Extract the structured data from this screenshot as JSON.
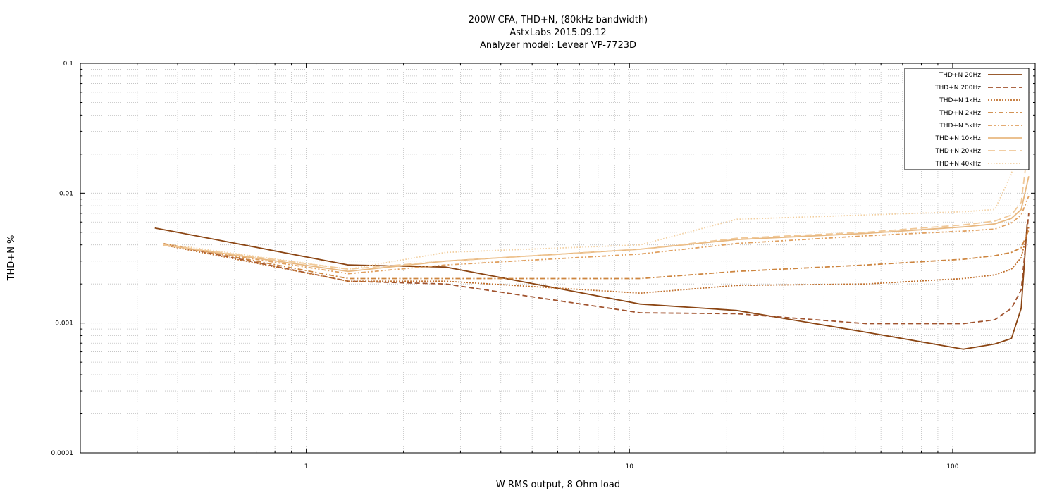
{
  "chart_data": {
    "type": "line",
    "title_lines": [
      "200W CFA, THD+N, (80kHz bandwidth)",
      "AstxLabs 2015.09.12",
      "Analyzer model: Levear VP-7723D"
    ],
    "xlabel": "W RMS output, 8 Ohm load",
    "ylabel": "THD+N %",
    "x_scale": "log",
    "y_scale": "log",
    "xlim": [
      0.2,
      180
    ],
    "ylim": [
      0.0001,
      0.1
    ],
    "x_ticks": [
      1,
      10,
      100
    ],
    "x_tick_labels": [
      "1",
      "10",
      "100"
    ],
    "y_ticks": [
      0.0001,
      0.001,
      0.01,
      0.1
    ],
    "y_tick_labels": [
      "0.0001",
      "0.001",
      "0.01",
      "0.1"
    ],
    "grid": true,
    "legend_position": "top-right",
    "series": [
      {
        "name": "THD+N 20Hz",
        "color": "#8b4513",
        "dash": "solid",
        "x": [
          0.34,
          1.35,
          2.7,
          10.8,
          21.5,
          54,
          108,
          135,
          152,
          163,
          170
        ],
        "y": [
          0.0054,
          0.0028,
          0.0027,
          0.0014,
          0.00125,
          0.00085,
          0.00063,
          0.00069,
          0.00076,
          0.0013,
          0.0058
        ]
      },
      {
        "name": "THD+N 200Hz",
        "color": "#a0522d",
        "dash": "dashed",
        "x": [
          0.36,
          1.35,
          2.7,
          10.8,
          21.5,
          54,
          108,
          135,
          152,
          163,
          172
        ],
        "y": [
          0.0041,
          0.0021,
          0.002,
          0.0012,
          0.00118,
          0.00099,
          0.00099,
          0.00106,
          0.0013,
          0.0018,
          0.007
        ]
      },
      {
        "name": "THD+N 1kHz",
        "color": "#c0702e",
        "dash": "dotted",
        "x": [
          0.36,
          1.35,
          2.7,
          10.8,
          21.5,
          54,
          108,
          135,
          152,
          163,
          172
        ],
        "y": [
          0.004,
          0.0021,
          0.0021,
          0.0017,
          0.00195,
          0.002,
          0.0022,
          0.00235,
          0.0026,
          0.0032,
          0.0055
        ]
      },
      {
        "name": "THD+N 2kHz",
        "color": "#cd853f",
        "dash": "dashdot",
        "x": [
          0.36,
          1.35,
          2.7,
          10.8,
          21.5,
          54,
          108,
          135,
          152,
          163,
          172
        ],
        "y": [
          0.0041,
          0.0022,
          0.0022,
          0.0022,
          0.0025,
          0.0028,
          0.0031,
          0.0033,
          0.0035,
          0.0038,
          0.0052
        ]
      },
      {
        "name": "THD+N 5kHz",
        "color": "#e0a060",
        "dash": "dashdotdot",
        "x": [
          0.36,
          1.35,
          2.7,
          10.8,
          21.5,
          54,
          108,
          135,
          152,
          163,
          172
        ],
        "y": [
          0.004,
          0.0024,
          0.0028,
          0.0034,
          0.0041,
          0.0047,
          0.0051,
          0.0053,
          0.0059,
          0.0068,
          0.0095
        ]
      },
      {
        "name": "THD+N 10kHz",
        "color": "#e8b880",
        "dash": "solid",
        "x": [
          0.36,
          1.35,
          2.7,
          10.8,
          21.5,
          54,
          108,
          135,
          152,
          163,
          172
        ],
        "y": [
          0.004,
          0.0025,
          0.003,
          0.0037,
          0.0044,
          0.0049,
          0.0055,
          0.0058,
          0.0064,
          0.0075,
          0.0135
        ]
      },
      {
        "name": "THD+N 20kHz",
        "color": "#f0c898",
        "dash": "longdash",
        "x": [
          0.36,
          1.35,
          2.7,
          10.8,
          21.5,
          54,
          108,
          135,
          152,
          163,
          172
        ],
        "y": [
          0.004,
          0.0026,
          0.003,
          0.0037,
          0.0045,
          0.005,
          0.0057,
          0.0061,
          0.0068,
          0.0085,
          0.025
        ]
      },
      {
        "name": "THD+N 40kHz",
        "color": "#f2cfa0",
        "dash": "finedot",
        "x": [
          0.36,
          1.35,
          2.7,
          10.8,
          21.5,
          54,
          108,
          135,
          152,
          163,
          172
        ],
        "y": [
          0.0041,
          0.0026,
          0.0035,
          0.004,
          0.0063,
          0.0068,
          0.0072,
          0.0075,
          0.014,
          0.035,
          0.06
        ]
      }
    ]
  }
}
